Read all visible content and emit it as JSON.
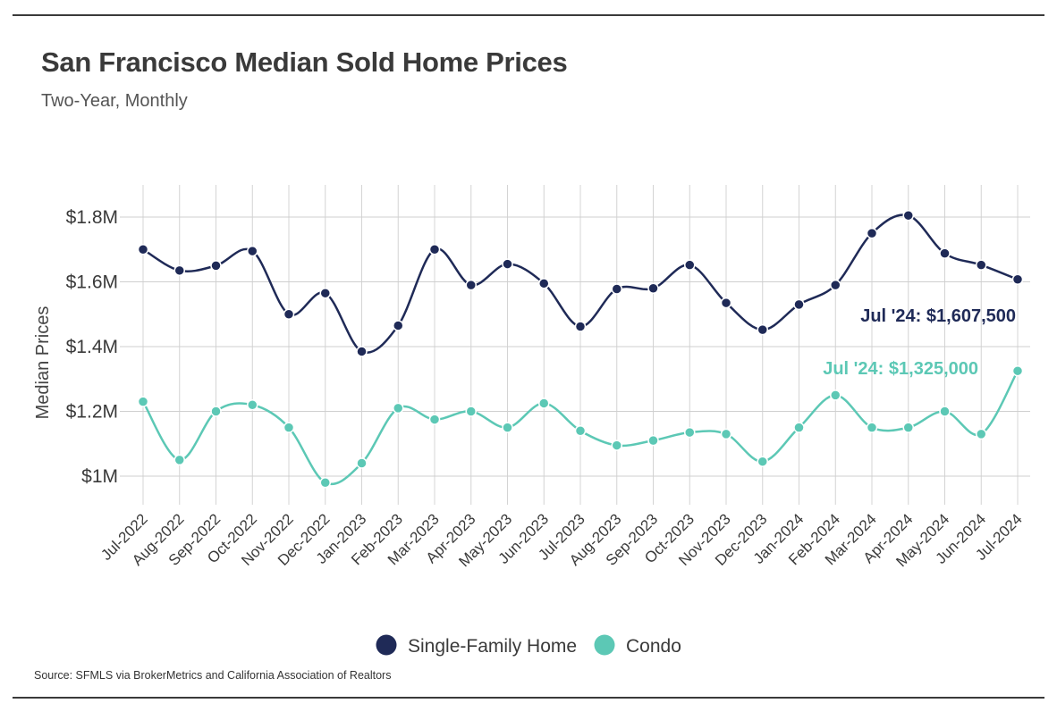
{
  "header": {
    "title": "San Francisco Median Sold Home Prices",
    "subtitle": "Two-Year, Monthly"
  },
  "footer": {
    "source": "Source:  SFMLS via BrokerMetrics and California Association of Realtors"
  },
  "chart_data": {
    "type": "line",
    "title": "San Francisco Median Sold Home Prices",
    "subtitle": "Two-Year, Monthly",
    "xlabel": "",
    "ylabel": "Median Prices",
    "ylim": [
      900000,
      1900000
    ],
    "yticks": [
      1000000,
      1200000,
      1400000,
      1600000,
      1800000
    ],
    "ytick_labels": [
      "$1M",
      "$1.2M",
      "$1.4M",
      "$1.6M",
      "$1.8M"
    ],
    "grid": true,
    "legend_position": "bottom-center",
    "categories": [
      "Jul-2022",
      "Aug-2022",
      "Sep-2022",
      "Oct-2022",
      "Nov-2022",
      "Dec-2022",
      "Jan-2023",
      "Feb-2023",
      "Mar-2023",
      "Apr-2023",
      "May-2023",
      "Jun-2023",
      "Jul-2023",
      "Aug-2023",
      "Sep-2023",
      "Oct-2023",
      "Nov-2023",
      "Dec-2023",
      "Jan-2024",
      "Feb-2024",
      "Mar-2024",
      "Apr-2024",
      "May-2024",
      "Jun-2024",
      "Jul-2024"
    ],
    "series": [
      {
        "name": "Single-Family Home",
        "color": "#1f2a57",
        "values": [
          1700000,
          1635000,
          1650000,
          1695000,
          1500000,
          1565000,
          1385000,
          1465000,
          1700000,
          1590000,
          1655000,
          1595000,
          1462000,
          1578000,
          1580000,
          1652000,
          1535000,
          1452000,
          1530000,
          1590000,
          1750000,
          1805000,
          1688000,
          1652000,
          1607500
        ]
      },
      {
        "name": "Condo",
        "color": "#5cc8b5",
        "values": [
          1230000,
          1050000,
          1200000,
          1220000,
          1150000,
          980000,
          1040000,
          1210000,
          1175000,
          1200000,
          1150000,
          1225000,
          1140000,
          1095000,
          1110000,
          1135000,
          1130000,
          1045000,
          1150000,
          1250000,
          1150000,
          1150000,
          1200000,
          1130000,
          1325000
        ]
      }
    ],
    "annotations": [
      {
        "text": "Jul '24: $1,607,500",
        "series": "Single-Family Home",
        "color": "#1f2a57"
      },
      {
        "text": "Jul '24: $1,325,000",
        "series": "Condo",
        "color": "#5cc8b5"
      }
    ]
  }
}
